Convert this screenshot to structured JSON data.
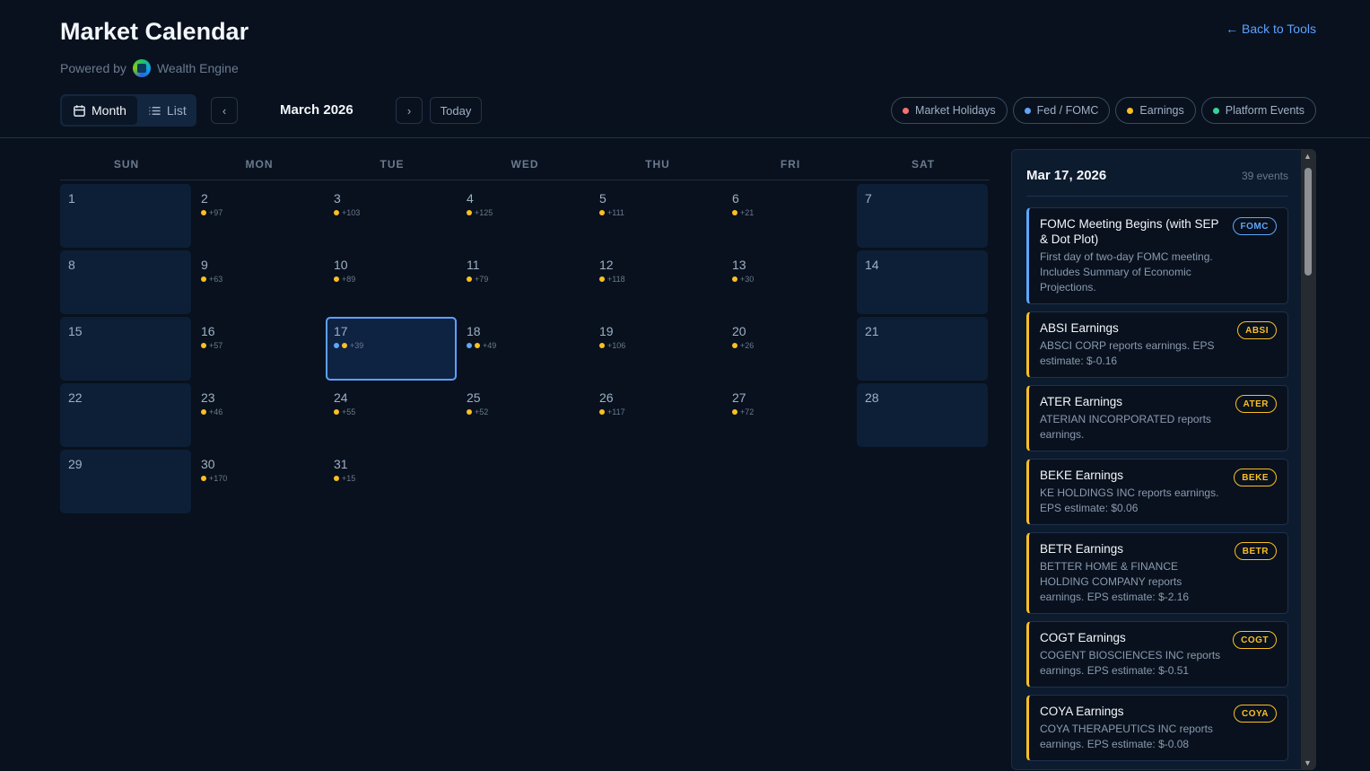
{
  "header": {
    "title": "Market Calendar",
    "powered_by": "Powered by",
    "brand": "Wealth Engine",
    "back_link": "← Back to Tools"
  },
  "toolbar": {
    "view_month": "Month",
    "view_list": "List",
    "active_view": "Month",
    "prev": "‹",
    "next": "›",
    "month_label": "March 2026",
    "today": "Today"
  },
  "legend": [
    {
      "label": "Market Holidays",
      "color": "#f87171"
    },
    {
      "label": "Fed / FOMC",
      "color": "#60a5fa"
    },
    {
      "label": "Earnings",
      "color": "#fbbf24"
    },
    {
      "label": "Platform Events",
      "color": "#34d399"
    }
  ],
  "calendar": {
    "weekdays": [
      "SUN",
      "MON",
      "TUE",
      "WED",
      "THU",
      "FRI",
      "SAT"
    ],
    "selected_day": 17,
    "days": [
      {
        "day": "1",
        "dots": [],
        "count": ""
      },
      {
        "day": "2",
        "dots": [
          "earnings"
        ],
        "count": "+97"
      },
      {
        "day": "3",
        "dots": [
          "earnings"
        ],
        "count": "+103"
      },
      {
        "day": "4",
        "dots": [
          "earnings"
        ],
        "count": "+125"
      },
      {
        "day": "5",
        "dots": [
          "earnings"
        ],
        "count": "+111"
      },
      {
        "day": "6",
        "dots": [
          "earnings"
        ],
        "count": "+21"
      },
      {
        "day": "7",
        "dots": [],
        "count": ""
      },
      {
        "day": "8",
        "dots": [],
        "count": ""
      },
      {
        "day": "9",
        "dots": [
          "earnings"
        ],
        "count": "+63"
      },
      {
        "day": "10",
        "dots": [
          "earnings"
        ],
        "count": "+89"
      },
      {
        "day": "11",
        "dots": [
          "earnings"
        ],
        "count": "+79"
      },
      {
        "day": "12",
        "dots": [
          "earnings"
        ],
        "count": "+118"
      },
      {
        "day": "13",
        "dots": [
          "earnings"
        ],
        "count": "+30"
      },
      {
        "day": "14",
        "dots": [],
        "count": ""
      },
      {
        "day": "15",
        "dots": [],
        "count": ""
      },
      {
        "day": "16",
        "dots": [
          "earnings"
        ],
        "count": "+57"
      },
      {
        "day": "17",
        "dots": [
          "fed",
          "earnings"
        ],
        "count": "+39"
      },
      {
        "day": "18",
        "dots": [
          "fed",
          "earnings"
        ],
        "count": "+49"
      },
      {
        "day": "19",
        "dots": [
          "earnings"
        ],
        "count": "+106"
      },
      {
        "day": "20",
        "dots": [
          "earnings"
        ],
        "count": "+26"
      },
      {
        "day": "21",
        "dots": [],
        "count": ""
      },
      {
        "day": "22",
        "dots": [],
        "count": ""
      },
      {
        "day": "23",
        "dots": [
          "earnings"
        ],
        "count": "+46"
      },
      {
        "day": "24",
        "dots": [
          "earnings"
        ],
        "count": "+55"
      },
      {
        "day": "25",
        "dots": [
          "earnings"
        ],
        "count": "+52"
      },
      {
        "day": "26",
        "dots": [
          "earnings"
        ],
        "count": "+117"
      },
      {
        "day": "27",
        "dots": [
          "earnings"
        ],
        "count": "+72"
      },
      {
        "day": "28",
        "dots": [],
        "count": ""
      },
      {
        "day": "29",
        "dots": [],
        "count": ""
      },
      {
        "day": "30",
        "dots": [
          "earnings"
        ],
        "count": "+170"
      },
      {
        "day": "31",
        "dots": [
          "earnings"
        ],
        "count": "+15"
      }
    ]
  },
  "colors": {
    "fed": "#60a5fa",
    "earnings": "#fbbf24",
    "holiday": "#f87171",
    "platform": "#34d399"
  },
  "panel": {
    "date": "Mar 17, 2026",
    "count": "39 events",
    "events": [
      {
        "title": "FOMC Meeting Begins (with SEP & Dot Plot)",
        "desc": "First day of two-day FOMC meeting. Includes Summary of Economic Projections.",
        "badge": "FOMC",
        "type": "fed"
      },
      {
        "title": "ABSI Earnings",
        "desc": "ABSCI CORP reports earnings. EPS estimate: $-0.16",
        "badge": "ABSI",
        "type": "earnings"
      },
      {
        "title": "ATER Earnings",
        "desc": "ATERIAN INCORPORATED reports earnings.",
        "badge": "ATER",
        "type": "earnings"
      },
      {
        "title": "BEKE Earnings",
        "desc": "KE HOLDINGS INC reports earnings. EPS estimate: $0.06",
        "badge": "BEKE",
        "type": "earnings"
      },
      {
        "title": "BETR Earnings",
        "desc": "BETTER HOME & FINANCE HOLDING COMPANY reports earnings. EPS estimate: $-2.16",
        "badge": "BETR",
        "type": "earnings"
      },
      {
        "title": "COGT Earnings",
        "desc": "COGENT BIOSCIENCES INC reports earnings. EPS estimate: $-0.51",
        "badge": "COGT",
        "type": "earnings"
      },
      {
        "title": "COYA Earnings",
        "desc": "COYA THERAPEUTICS INC reports earnings. EPS estimate: $-0.08",
        "badge": "COYA",
        "type": "earnings"
      }
    ]
  }
}
